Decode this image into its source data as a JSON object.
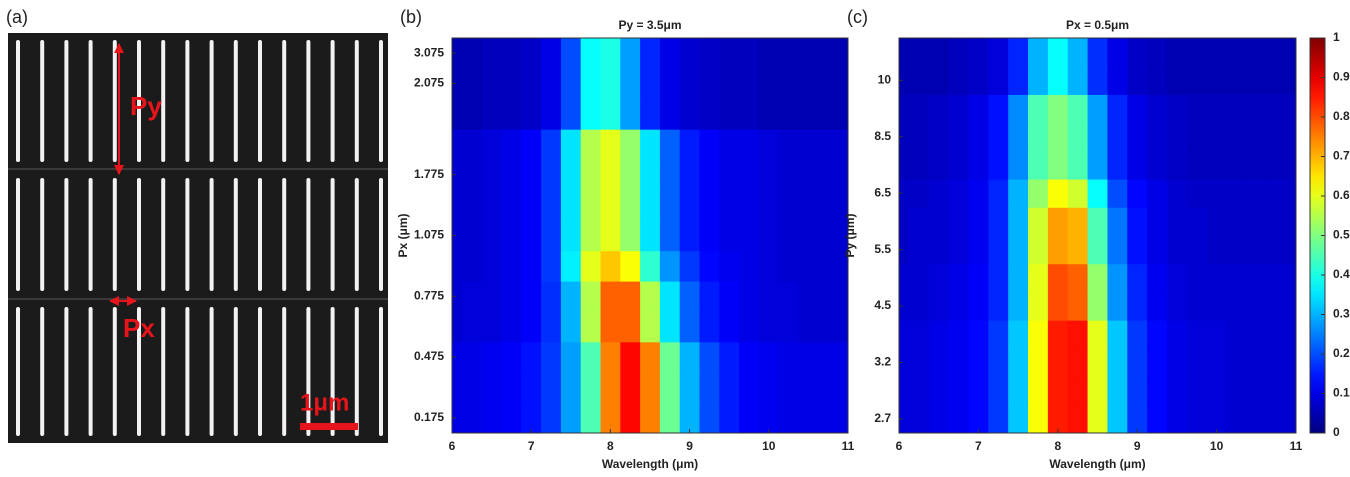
{
  "image_panel": {
    "label": "(a)",
    "annotations": [
      "Py",
      "Px"
    ],
    "scale_bar": "1μm"
  },
  "chart_data": [
    {
      "type": "heatmap",
      "panel_label": "(b)",
      "title": "Py = 3.5μm",
      "x_label": "Wavelength (μm)",
      "y_label": "Px (μm)",
      "x": [
        6,
        6.25,
        6.5,
        6.75,
        7,
        7.25,
        7.5,
        7.75,
        8,
        8.25,
        8.5,
        8.75,
        9,
        9.25,
        9.5,
        9.75,
        10,
        10.25,
        10.5,
        10.75,
        11
      ],
      "y": [
        "0.175",
        null,
        "0.475",
        null,
        "0.775",
        null,
        "1.075",
        null,
        "1.775",
        null,
        null,
        "2.075",
        "3.075"
      ],
      "xlim": [
        6,
        11
      ],
      "xticks": [
        6,
        7,
        8,
        9,
        10,
        11
      ],
      "zlim": [
        0,
        1
      ],
      "colormap": "jet",
      "z": [
        [
          0.1,
          0.1,
          0.11,
          0.12,
          0.14,
          0.18,
          0.28,
          0.45,
          0.75,
          0.87,
          0.75,
          0.48,
          0.3,
          0.2,
          0.15,
          0.12,
          0.11,
          0.1,
          0.1,
          0.1,
          0.1
        ],
        [
          0.1,
          0.1,
          0.11,
          0.12,
          0.14,
          0.18,
          0.28,
          0.45,
          0.75,
          0.87,
          0.75,
          0.48,
          0.3,
          0.2,
          0.15,
          0.12,
          0.11,
          0.1,
          0.1,
          0.1,
          0.1
        ],
        [
          0.1,
          0.1,
          0.11,
          0.12,
          0.14,
          0.18,
          0.28,
          0.45,
          0.75,
          0.87,
          0.75,
          0.48,
          0.3,
          0.2,
          0.15,
          0.12,
          0.11,
          0.1,
          0.1,
          0.1,
          0.1
        ],
        [
          0.08,
          0.09,
          0.09,
          0.1,
          0.12,
          0.17,
          0.3,
          0.55,
          0.78,
          0.78,
          0.55,
          0.35,
          0.22,
          0.15,
          0.12,
          0.1,
          0.09,
          0.09,
          0.08,
          0.08,
          0.08
        ],
        [
          0.08,
          0.09,
          0.09,
          0.1,
          0.12,
          0.17,
          0.3,
          0.55,
          0.78,
          0.78,
          0.55,
          0.35,
          0.22,
          0.15,
          0.12,
          0.1,
          0.09,
          0.09,
          0.08,
          0.08,
          0.08
        ],
        [
          0.08,
          0.08,
          0.09,
          0.1,
          0.12,
          0.18,
          0.36,
          0.6,
          0.68,
          0.62,
          0.42,
          0.27,
          0.18,
          0.13,
          0.11,
          0.1,
          0.09,
          0.08,
          0.08,
          0.08,
          0.08
        ],
        [
          0.08,
          0.08,
          0.09,
          0.1,
          0.12,
          0.18,
          0.35,
          0.55,
          0.6,
          0.52,
          0.35,
          0.22,
          0.15,
          0.12,
          0.1,
          0.1,
          0.09,
          0.08,
          0.08,
          0.08,
          0.08
        ],
        [
          0.08,
          0.08,
          0.09,
          0.1,
          0.12,
          0.18,
          0.35,
          0.55,
          0.6,
          0.52,
          0.35,
          0.22,
          0.15,
          0.12,
          0.1,
          0.1,
          0.09,
          0.08,
          0.08,
          0.08,
          0.08
        ],
        [
          0.08,
          0.08,
          0.09,
          0.1,
          0.12,
          0.18,
          0.35,
          0.55,
          0.6,
          0.52,
          0.35,
          0.22,
          0.15,
          0.12,
          0.1,
          0.1,
          0.09,
          0.08,
          0.08,
          0.08,
          0.08
        ],
        [
          0.08,
          0.08,
          0.09,
          0.1,
          0.12,
          0.18,
          0.35,
          0.55,
          0.6,
          0.52,
          0.35,
          0.22,
          0.15,
          0.12,
          0.1,
          0.1,
          0.09,
          0.08,
          0.08,
          0.08,
          0.08
        ],
        [
          0.05,
          0.05,
          0.06,
          0.06,
          0.07,
          0.1,
          0.2,
          0.38,
          0.4,
          0.28,
          0.16,
          0.1,
          0.08,
          0.07,
          0.06,
          0.06,
          0.05,
          0.05,
          0.05,
          0.05,
          0.05
        ],
        [
          0.05,
          0.05,
          0.06,
          0.06,
          0.07,
          0.1,
          0.2,
          0.38,
          0.4,
          0.28,
          0.16,
          0.1,
          0.08,
          0.07,
          0.06,
          0.06,
          0.05,
          0.05,
          0.05,
          0.05,
          0.05
        ],
        [
          0.05,
          0.05,
          0.06,
          0.06,
          0.07,
          0.1,
          0.2,
          0.38,
          0.4,
          0.28,
          0.16,
          0.1,
          0.08,
          0.07,
          0.06,
          0.06,
          0.05,
          0.05,
          0.05,
          0.05,
          0.05
        ]
      ]
    },
    {
      "type": "heatmap",
      "panel_label": "(c)",
      "title": "Px = 0.5μm",
      "x_label": "Wavelength (μm)",
      "y_label": "Py (μm)",
      "x": [
        6,
        6.25,
        6.5,
        6.75,
        7,
        7.25,
        7.5,
        7.75,
        8,
        8.25,
        8.5,
        8.75,
        9,
        9.25,
        9.5,
        9.75,
        10,
        10.25,
        10.5,
        10.75,
        11
      ],
      "y": [
        "2.7",
        null,
        "3.2",
        null,
        "4.5",
        null,
        "5.5",
        null,
        "6.5",
        null,
        "8.5",
        null,
        "10",
        null
      ],
      "xlim": [
        6,
        11
      ],
      "xticks": [
        6,
        7,
        8,
        9,
        10,
        11
      ],
      "zlim": [
        0,
        1
      ],
      "colormap": "jet",
      "colorbar": {
        "zticks": [
          0,
          0.1,
          0.2,
          0.3,
          0.4,
          0.5,
          0.6,
          0.7,
          0.8,
          0.9,
          1
        ]
      },
      "z": [
        [
          0.09,
          0.09,
          0.1,
          0.11,
          0.13,
          0.18,
          0.32,
          0.62,
          0.85,
          0.86,
          0.6,
          0.32,
          0.18,
          0.13,
          0.1,
          0.09,
          0.09,
          0.08,
          0.08,
          0.08,
          0.08
        ],
        [
          0.09,
          0.09,
          0.1,
          0.11,
          0.13,
          0.18,
          0.32,
          0.62,
          0.85,
          0.86,
          0.6,
          0.32,
          0.18,
          0.13,
          0.1,
          0.09,
          0.09,
          0.08,
          0.08,
          0.08,
          0.08
        ],
        [
          0.09,
          0.09,
          0.1,
          0.11,
          0.13,
          0.18,
          0.32,
          0.62,
          0.85,
          0.86,
          0.6,
          0.32,
          0.18,
          0.13,
          0.1,
          0.09,
          0.09,
          0.08,
          0.08,
          0.08,
          0.08
        ],
        [
          0.09,
          0.09,
          0.1,
          0.11,
          0.13,
          0.18,
          0.32,
          0.62,
          0.85,
          0.86,
          0.6,
          0.32,
          0.18,
          0.13,
          0.1,
          0.09,
          0.09,
          0.08,
          0.08,
          0.08,
          0.08
        ],
        [
          0.08,
          0.08,
          0.09,
          0.1,
          0.12,
          0.16,
          0.3,
          0.6,
          0.8,
          0.78,
          0.52,
          0.27,
          0.16,
          0.11,
          0.09,
          0.08,
          0.08,
          0.08,
          0.08,
          0.08,
          0.08
        ],
        [
          0.08,
          0.08,
          0.09,
          0.1,
          0.12,
          0.16,
          0.3,
          0.6,
          0.8,
          0.78,
          0.52,
          0.27,
          0.16,
          0.11,
          0.09,
          0.08,
          0.08,
          0.08,
          0.08,
          0.08,
          0.08
        ],
        [
          0.07,
          0.08,
          0.08,
          0.09,
          0.11,
          0.16,
          0.3,
          0.58,
          0.72,
          0.7,
          0.45,
          0.24,
          0.14,
          0.1,
          0.08,
          0.08,
          0.07,
          0.07,
          0.07,
          0.07,
          0.07
        ],
        [
          0.07,
          0.08,
          0.08,
          0.09,
          0.11,
          0.16,
          0.3,
          0.58,
          0.72,
          0.7,
          0.45,
          0.24,
          0.14,
          0.1,
          0.08,
          0.08,
          0.07,
          0.07,
          0.07,
          0.07,
          0.07
        ],
        [
          0.07,
          0.07,
          0.08,
          0.09,
          0.11,
          0.16,
          0.3,
          0.52,
          0.62,
          0.58,
          0.38,
          0.2,
          0.13,
          0.1,
          0.08,
          0.07,
          0.07,
          0.07,
          0.07,
          0.07,
          0.07
        ],
        [
          0.06,
          0.06,
          0.07,
          0.08,
          0.1,
          0.14,
          0.26,
          0.45,
          0.5,
          0.45,
          0.28,
          0.16,
          0.1,
          0.08,
          0.07,
          0.06,
          0.06,
          0.06,
          0.06,
          0.06,
          0.06
        ],
        [
          0.06,
          0.06,
          0.07,
          0.08,
          0.1,
          0.14,
          0.26,
          0.45,
          0.5,
          0.45,
          0.28,
          0.16,
          0.1,
          0.08,
          0.07,
          0.06,
          0.06,
          0.06,
          0.06,
          0.06,
          0.06
        ],
        [
          0.06,
          0.06,
          0.07,
          0.08,
          0.1,
          0.14,
          0.26,
          0.45,
          0.5,
          0.45,
          0.28,
          0.16,
          0.1,
          0.08,
          0.07,
          0.06,
          0.06,
          0.06,
          0.06,
          0.06,
          0.06
        ],
        [
          0.05,
          0.05,
          0.05,
          0.06,
          0.07,
          0.09,
          0.16,
          0.3,
          0.38,
          0.3,
          0.17,
          0.1,
          0.07,
          0.06,
          0.05,
          0.05,
          0.05,
          0.05,
          0.05,
          0.05,
          0.05
        ],
        [
          0.05,
          0.05,
          0.05,
          0.06,
          0.07,
          0.09,
          0.16,
          0.3,
          0.38,
          0.3,
          0.17,
          0.1,
          0.07,
          0.06,
          0.05,
          0.05,
          0.05,
          0.05,
          0.05,
          0.05,
          0.05
        ]
      ]
    }
  ]
}
